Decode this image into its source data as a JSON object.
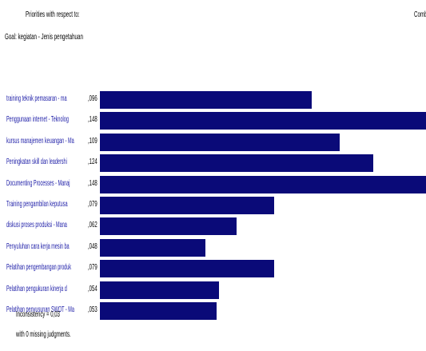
{
  "header": {
    "line1": "Priorities with respect to:",
    "line2": "Goal: kegiatan - Jenis pengetahuan",
    "right_cut": "Combi"
  },
  "footer": {
    "inconsistency": "Inconsistency = 0,03",
    "missing": "with 0  missing judgments."
  },
  "colors": {
    "bar": "#0a0a78",
    "label": "#1a1aa6"
  },
  "chart_data": {
    "type": "bar",
    "orientation": "horizontal",
    "xlim": [
      0,
      0.148
    ],
    "categories": [
      "training teknik pemasaran - ma",
      "Penggunaan internet - Teknolog",
      "kursus manajemen keuangan - Ma",
      "Peningkatan skill dan leadershi",
      "Documenting Processes - Manaj",
      "Training  pengambilan keputusa",
      "diskusi proses produksi - Mana",
      "Penyuluhan cara kerja mesin ba",
      "Pelatihan pengembangan produk",
      "Pelatihan pengukuran kinerja d",
      "Pelatihan penyusunan SWOT - Ma"
    ],
    "value_labels": [
      ",096",
      ",148",
      ",109",
      ",124",
      ",148",
      ",079",
      ",062",
      ",048",
      ",079",
      ",054",
      ",053"
    ],
    "values": [
      0.096,
      0.148,
      0.109,
      0.124,
      0.148,
      0.079,
      0.062,
      0.048,
      0.079,
      0.054,
      0.053
    ]
  }
}
